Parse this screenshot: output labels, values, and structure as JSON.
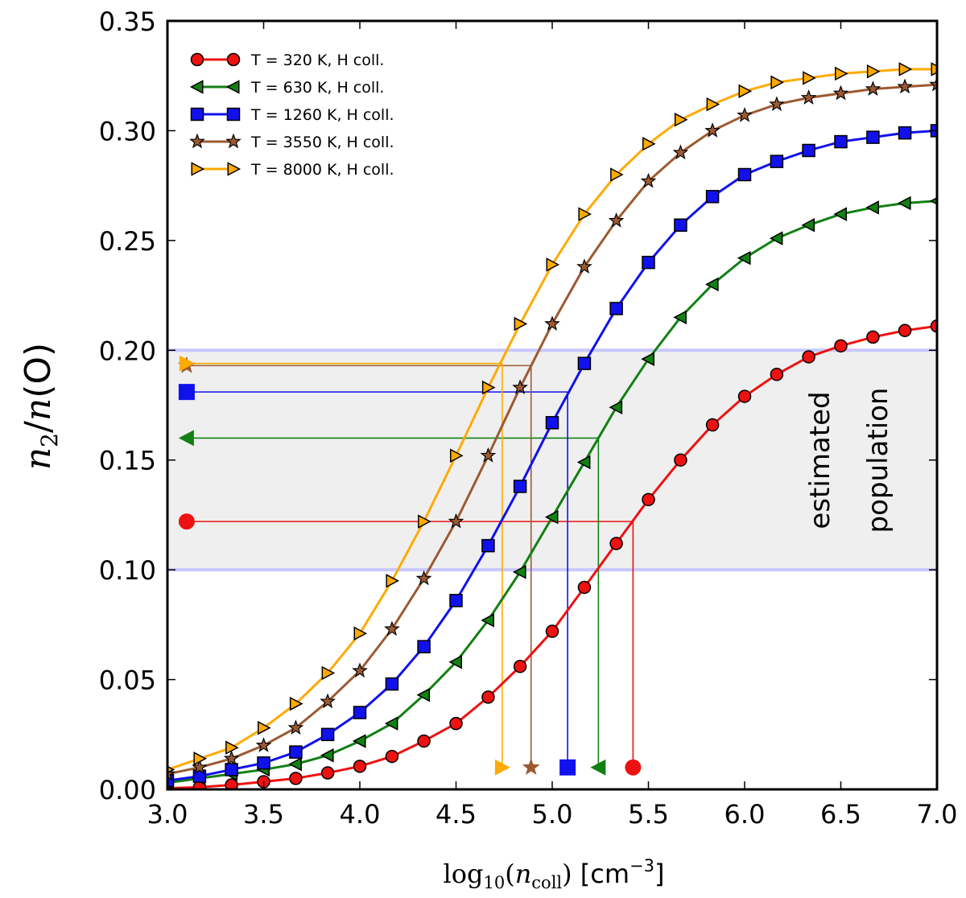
{
  "chart_data": {
    "type": "line",
    "xlabel": {
      "prefix": "log",
      "sub": "10",
      "open": "(",
      "var": "n",
      "varsub": "coll",
      "close": ")",
      "unit_open": " [cm",
      "unit_exp": "−3",
      "unit_close": "]"
    },
    "ylabel": {
      "n": "n",
      "two": "2",
      "slash": "/",
      "n2": "n",
      "paren": "(O)"
    },
    "xlim": [
      3.0,
      7.0
    ],
    "ylim": [
      0.0,
      0.35
    ],
    "xticks": [
      "3.0",
      "3.5",
      "4.0",
      "4.5",
      "5.0",
      "5.5",
      "6.0",
      "6.5",
      "7.0"
    ],
    "yticks": [
      "0.00",
      "0.05",
      "0.10",
      "0.15",
      "0.20",
      "0.25",
      "0.30",
      "0.35"
    ],
    "band": {
      "y0": 0.1,
      "y1": 0.2,
      "label_line1": "estimated",
      "label_line2": "population"
    },
    "legend_position": "top-left",
    "series": [
      {
        "name": "T = 320 K, H coll.",
        "color": "#ee1111",
        "marker": "circle",
        "crossing": {
          "x": 5.42,
          "y": 0.122
        },
        "x": [
          3.0,
          3.167,
          3.333,
          3.5,
          3.667,
          3.833,
          4.0,
          4.167,
          4.333,
          4.5,
          4.667,
          4.833,
          5.0,
          5.167,
          5.333,
          5.5,
          5.667,
          5.833,
          6.0,
          6.167,
          6.333,
          6.5,
          6.667,
          6.833,
          7.0
        ],
        "y": [
          0.0005,
          0.001,
          0.002,
          0.0035,
          0.005,
          0.0075,
          0.0105,
          0.015,
          0.022,
          0.03,
          0.042,
          0.056,
          0.072,
          0.092,
          0.112,
          0.132,
          0.15,
          0.166,
          0.179,
          0.189,
          0.197,
          0.202,
          0.206,
          0.209,
          0.211
        ]
      },
      {
        "name": "T = 630 K, H coll.",
        "color": "#138013",
        "marker": "triangle-left",
        "crossing": {
          "x": 5.24,
          "y": 0.16
        },
        "x": [
          3.0,
          3.167,
          3.333,
          3.5,
          3.667,
          3.833,
          4.0,
          4.167,
          4.333,
          4.5,
          4.667,
          4.833,
          5.0,
          5.167,
          5.333,
          5.5,
          5.667,
          5.833,
          6.0,
          6.167,
          6.333,
          6.5,
          6.667,
          6.833,
          7.0
        ],
        "y": [
          0.003,
          0.005,
          0.007,
          0.009,
          0.0115,
          0.0155,
          0.022,
          0.03,
          0.043,
          0.058,
          0.077,
          0.099,
          0.124,
          0.149,
          0.174,
          0.196,
          0.215,
          0.23,
          0.242,
          0.251,
          0.257,
          0.262,
          0.265,
          0.267,
          0.268
        ]
      },
      {
        "name": "T = 1260 K, H coll.",
        "color": "#1111ee",
        "marker": "square",
        "crossing": {
          "x": 5.08,
          "y": 0.181
        },
        "x": [
          3.0,
          3.167,
          3.333,
          3.5,
          3.667,
          3.833,
          4.0,
          4.167,
          4.333,
          4.5,
          4.667,
          4.833,
          5.0,
          5.167,
          5.333,
          5.5,
          5.667,
          5.833,
          6.0,
          6.167,
          6.333,
          6.5,
          6.667,
          6.833,
          7.0
        ],
        "y": [
          0.004,
          0.006,
          0.009,
          0.012,
          0.017,
          0.025,
          0.035,
          0.048,
          0.065,
          0.086,
          0.111,
          0.138,
          0.167,
          0.194,
          0.219,
          0.24,
          0.257,
          0.27,
          0.28,
          0.286,
          0.291,
          0.295,
          0.297,
          0.299,
          0.3
        ]
      },
      {
        "name": "T = 3550 K, H coll.",
        "color": "#9c5a32",
        "marker": "star",
        "crossing": {
          "x": 4.89,
          "y": 0.193
        },
        "x": [
          3.0,
          3.167,
          3.333,
          3.5,
          3.667,
          3.833,
          4.0,
          4.167,
          4.333,
          4.5,
          4.667,
          4.833,
          5.0,
          5.167,
          5.333,
          5.5,
          5.667,
          5.833,
          6.0,
          6.167,
          6.333,
          6.5,
          6.667,
          6.833,
          7.0
        ],
        "y": [
          0.007,
          0.01,
          0.014,
          0.02,
          0.028,
          0.04,
          0.054,
          0.073,
          0.096,
          0.122,
          0.152,
          0.183,
          0.212,
          0.238,
          0.259,
          0.277,
          0.29,
          0.3,
          0.307,
          0.312,
          0.315,
          0.317,
          0.319,
          0.32,
          0.321
        ]
      },
      {
        "name": "T = 8000 K, H coll.",
        "color": "#ffaa00",
        "marker": "triangle-right",
        "crossing": {
          "x": 4.74,
          "y": 0.194
        },
        "x": [
          3.0,
          3.167,
          3.333,
          3.5,
          3.667,
          3.833,
          4.0,
          4.167,
          4.333,
          4.5,
          4.667,
          4.833,
          5.0,
          5.167,
          5.333,
          5.5,
          5.667,
          5.833,
          6.0,
          6.167,
          6.333,
          6.5,
          6.667,
          6.833,
          7.0
        ],
        "y": [
          0.009,
          0.014,
          0.019,
          0.028,
          0.039,
          0.053,
          0.071,
          0.095,
          0.122,
          0.152,
          0.183,
          0.212,
          0.239,
          0.262,
          0.28,
          0.294,
          0.305,
          0.312,
          0.318,
          0.322,
          0.324,
          0.326,
          0.327,
          0.328,
          0.328
        ]
      }
    ]
  }
}
